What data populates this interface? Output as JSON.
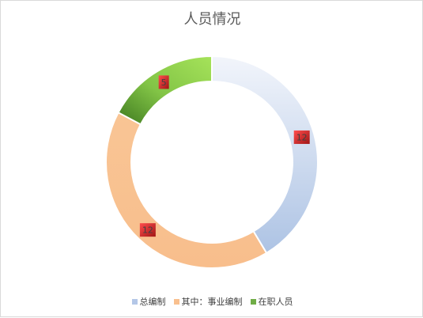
{
  "chart_data": {
    "type": "pie",
    "variant": "doughnut",
    "title": "人员情况",
    "categories": [
      "总编制",
      "其中：事业编制",
      "在职人员"
    ],
    "values": [
      12,
      12,
      5
    ],
    "colors": [
      "#b4c7e7",
      "#f9c08f",
      "#70ad47"
    ],
    "data_labels": [
      "12",
      "12",
      "5"
    ],
    "legend_position": "bottom"
  }
}
